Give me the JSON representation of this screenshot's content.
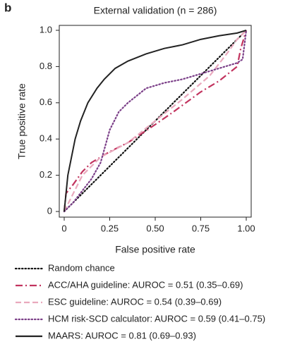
{
  "panel_label": "b",
  "chart_data": {
    "type": "line",
    "title": "External validation (n = 286)",
    "xlabel": "False positive rate",
    "ylabel": "True positive rate",
    "xlim": [
      0,
      1
    ],
    "ylim": [
      0,
      1
    ],
    "xticks": [
      0,
      0.25,
      {
        "value": 0.5,
        "label": "0.50"
      },
      0.75,
      {
        "value": 1,
        "label": "1.00"
      }
    ],
    "yticks": [
      0,
      0.2,
      0.4,
      0.6,
      0.8,
      {
        "value": 1,
        "label": "1.0"
      }
    ],
    "series": [
      {
        "name": "Random chance",
        "color": "#111111",
        "style": "dotted",
        "x": [
          0,
          1
        ],
        "y": [
          0,
          1
        ]
      },
      {
        "name": "ACC/AHA guideline: AUROC = 0.51 (0.35–0.69)",
        "color": "#c2345f",
        "style": "dashdot",
        "x": [
          0,
          0.01,
          0.05,
          0.1,
          0.15,
          0.25,
          0.35,
          0.5,
          0.6,
          0.75,
          0.85,
          0.95,
          0.97,
          1
        ],
        "y": [
          0,
          0.1,
          0.15,
          0.22,
          0.27,
          0.33,
          0.38,
          0.48,
          0.55,
          0.66,
          0.72,
          0.8,
          0.9,
          1
        ]
      },
      {
        "name": "ESC guideline: AUROC = 0.54 (0.39–0.69)",
        "color": "#e9a9bd",
        "style": "dashed",
        "x": [
          0,
          0.1,
          0.2,
          0.35,
          0.5,
          0.65,
          0.8,
          0.9,
          0.95,
          1
        ],
        "y": [
          0,
          0.2,
          0.3,
          0.38,
          0.5,
          0.62,
          0.75,
          0.88,
          0.95,
          1
        ]
      },
      {
        "name": "HCM risk-SCD calculator: AUROC = 0.59 (0.41–0.75)",
        "color": "#7b3f88",
        "style": "dotted",
        "x": [
          0,
          0.05,
          0.15,
          0.2,
          0.25,
          0.3,
          0.35,
          0.45,
          0.55,
          0.65,
          0.75,
          0.85,
          0.95,
          0.98,
          1
        ],
        "y": [
          0,
          0.05,
          0.18,
          0.27,
          0.45,
          0.55,
          0.6,
          0.68,
          0.71,
          0.73,
          0.76,
          0.79,
          0.82,
          0.84,
          1
        ]
      },
      {
        "name": "MAARS: AUROC = 0.81 (0.69–0.93)",
        "color": "#222222",
        "style": "solid",
        "x": [
          0,
          0.01,
          0.02,
          0.04,
          0.06,
          0.09,
          0.13,
          0.18,
          0.22,
          0.28,
          0.35,
          0.45,
          0.55,
          0.65,
          0.75,
          0.85,
          0.95,
          1
        ],
        "y": [
          0,
          0.1,
          0.2,
          0.3,
          0.4,
          0.5,
          0.6,
          0.68,
          0.73,
          0.79,
          0.83,
          0.87,
          0.9,
          0.92,
          0.95,
          0.97,
          0.985,
          1
        ]
      }
    ]
  }
}
